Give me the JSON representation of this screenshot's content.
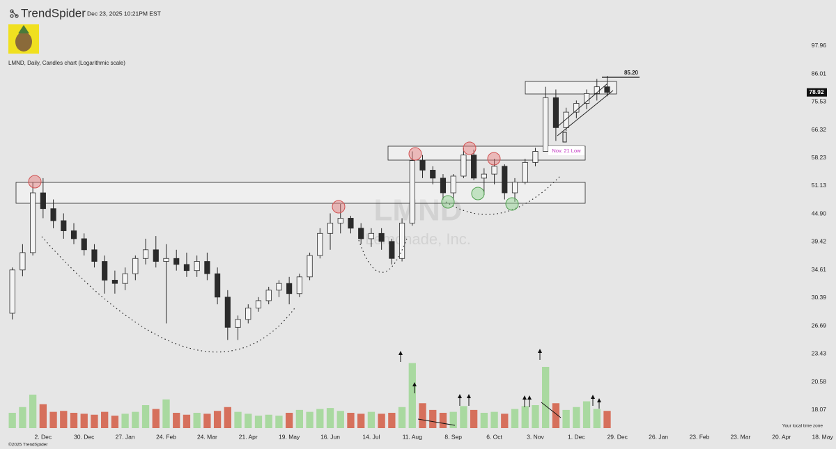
{
  "header": {
    "brand": "TrendSpider",
    "timestamp": "Dec 23, 2025 10:21PM EST"
  },
  "footer": {
    "copyright": "©2025 TrendSpider",
    "timezone": "Your local time zone"
  },
  "watermark": {
    "symbol": "LMND",
    "company": "Lemonade, Inc."
  },
  "annotations": {
    "high_label": "85.20",
    "low_label": "Nov. 21 Low"
  },
  "chart_data": {
    "type": "candlestick",
    "title": "LMND, Daily, Candles chart (Logarithmic scale)",
    "log_scale": true,
    "grid": false,
    "up_color": "#f4f4f4",
    "down_color": "#2b2b2b",
    "wick_color": "#2b2b2b",
    "volume_up_color": "#a9d9a0",
    "volume_down_color": "#d6705c",
    "ylim": [
      16.6,
      110
    ],
    "yticks": [
      97.96,
      86.01,
      75.53,
      66.32,
      58.23,
      51.13,
      {
        "value": 44.9,
        "label": "44.90"
      },
      39.42,
      34.61,
      30.39,
      26.69,
      23.43,
      20.58,
      18.07
    ],
    "volume_lim": [
      0,
      8
    ],
    "categories": [
      null,
      null,
      null,
      null,
      "2. Dec",
      null,
      null,
      null,
      "30. Dec",
      null,
      null,
      null,
      "27. Jan",
      null,
      null,
      null,
      "24. Feb",
      null,
      null,
      null,
      "24. Mar",
      null,
      null,
      null,
      "21. Apr",
      null,
      null,
      null,
      "19. May",
      null,
      null,
      null,
      "16. Jun",
      null,
      null,
      null,
      "14. Jul",
      null,
      null,
      null,
      "11. Aug",
      null,
      null,
      null,
      "8. Sep",
      null,
      null,
      null,
      "6. Oct",
      null,
      null,
      null,
      "3. Nov",
      null,
      null,
      null,
      "1. Dec",
      null,
      null,
      null,
      "29. Dec",
      null,
      null,
      null,
      "26. Jan",
      null,
      null,
      null,
      "23. Feb",
      null,
      null,
      null,
      "23. Mar",
      null,
      null,
      null,
      "20. Apr",
      null,
      null,
      null,
      "18. May"
    ],
    "open": [
      null,
      28.3,
      34.6,
      37.5,
      49.5,
      46,
      43.5,
      41.5,
      40,
      38,
      36,
      33,
      32.5,
      34,
      36.5,
      38,
      36,
      36.5,
      35.5,
      34.5,
      36,
      34,
      30.5,
      26.5,
      27.5,
      29,
      30,
      31.5,
      32.5,
      31,
      33.5,
      37,
      41,
      43,
      44,
      42,
      40,
      41,
      39.5,
      36.5,
      43,
      57.5,
      55,
      53,
      49.5,
      53.5,
      59,
      53,
      54,
      56,
      49.5,
      52,
      57,
      60,
      77,
      67,
      72,
      75,
      78.5,
      81,
      null,
      null,
      null,
      null,
      null,
      null,
      null,
      null,
      null,
      null,
      null,
      null,
      null,
      null,
      null,
      null,
      null,
      null,
      null,
      null,
      null
    ],
    "high": [
      null,
      35,
      39,
      52,
      53,
      48,
      45,
      43,
      41,
      39,
      37,
      34.5,
      35,
      37,
      40,
      40.5,
      39,
      38,
      37.5,
      37,
      37.5,
      35,
      31.5,
      28,
      29.5,
      30.5,
      32,
      33,
      33.5,
      34,
      37.5,
      42,
      45,
      47,
      44.5,
      43,
      42,
      42,
      40,
      44,
      60,
      59,
      56,
      54,
      54,
      61,
      60.5,
      55.5,
      58,
      56.5,
      53,
      58,
      61,
      81,
      80,
      73.5,
      76,
      80,
      84,
      85.2,
      null,
      null,
      null,
      null,
      null,
      null,
      null,
      null,
      null,
      null,
      null,
      null,
      null,
      null,
      null,
      null,
      null,
      null,
      null,
      null,
      null
    ],
    "low": [
      null,
      27.5,
      33.6,
      37,
      44,
      42,
      40,
      39,
      37,
      35,
      31,
      31,
      31.5,
      33,
      35.5,
      35,
      27,
      34.5,
      33.5,
      33.5,
      33,
      29.5,
      25,
      25,
      27,
      28.5,
      29.5,
      30.5,
      29.5,
      30.5,
      33,
      36.5,
      38,
      41,
      41,
      39,
      38.5,
      38,
      35.5,
      36,
      42.5,
      53,
      51.5,
      48,
      48,
      53,
      52.5,
      49,
      51.5,
      48,
      47.5,
      51.5,
      56,
      60,
      63,
      66,
      70,
      73,
      76,
      77.5,
      null,
      null,
      null,
      null,
      null,
      null,
      null,
      null,
      null,
      null,
      null,
      null,
      null,
      null,
      null,
      null,
      null,
      null,
      null,
      null,
      null
    ],
    "close": [
      null,
      34.6,
      37.5,
      49.5,
      46,
      43.5,
      41.5,
      40,
      38,
      36,
      33,
      32.5,
      34,
      36.5,
      38,
      36,
      36.5,
      35.5,
      34.5,
      36,
      34,
      30.5,
      26.5,
      27.5,
      29,
      30,
      31.5,
      32.5,
      31,
      33.5,
      37,
      41,
      43,
      44,
      42,
      40,
      41,
      39.5,
      36.5,
      43,
      57.5,
      55,
      53,
      49.5,
      53.5,
      59,
      53,
      54,
      56,
      49.5,
      52,
      57,
      60,
      77,
      67,
      72,
      75,
      78.5,
      81,
      78.92,
      null,
      null,
      null,
      null,
      null,
      null,
      null,
      null,
      null,
      null,
      null,
      null,
      null,
      null,
      null,
      null,
      null,
      null,
      null,
      null,
      null
    ],
    "volume": [
      null,
      1.6,
      2.2,
      3.5,
      2.5,
      1.7,
      1.8,
      1.6,
      1.5,
      1.4,
      1.7,
      1.3,
      1.5,
      1.7,
      2.4,
      2.0,
      3.0,
      1.6,
      1.4,
      1.6,
      1.5,
      1.8,
      2.2,
      1.7,
      1.5,
      1.3,
      1.4,
      1.3,
      1.6,
      1.9,
      1.7,
      2.0,
      2.1,
      1.8,
      1.6,
      1.5,
      1.7,
      1.5,
      1.6,
      2.2,
      6.8,
      2.6,
      1.9,
      1.6,
      1.7,
      2.3,
      1.9,
      1.6,
      1.7,
      1.5,
      2.0,
      2.3,
      2.4,
      6.4,
      2.6,
      1.9,
      2.2,
      2.8,
      2.0,
      1.8,
      null,
      null,
      null,
      null,
      null,
      null,
      null,
      null,
      null,
      null,
      null,
      null,
      null,
      null,
      null,
      null,
      null,
      null,
      null,
      null,
      null
    ]
  }
}
